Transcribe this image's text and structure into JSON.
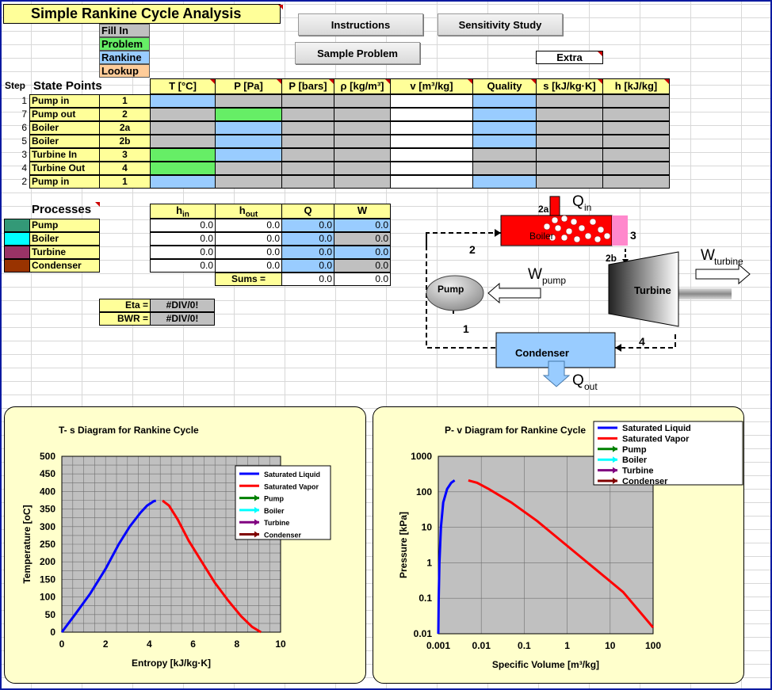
{
  "title": "Simple Rankine Cycle Analysis",
  "legend": [
    {
      "label": "Fill In",
      "color": "#c0c0c0"
    },
    {
      "label": "Problem",
      "color": "#66ee66"
    },
    {
      "label": "Rankine",
      "color": "#99ccff"
    },
    {
      "label": "Lookup",
      "color": "#ffcc99"
    }
  ],
  "buttons": {
    "instructions": "Instructions",
    "sensitivity": "Sensitivity Study",
    "sample": "Sample Problem",
    "extra": "Extra"
  },
  "states": {
    "step_label": "Step",
    "title": "State Points",
    "headers": [
      "T [°C]",
      "P [Pa]",
      "P [bars]",
      "ρ [kg/m³]",
      "v [m³/kg]",
      "Quality",
      "s [kJ/kg·K]",
      "h [kJ/kg]"
    ],
    "rows": [
      {
        "step": "1",
        "name": "Pump in",
        "pt": "1",
        "fills": [
          "b",
          "g",
          "g",
          "g",
          "w",
          "b",
          "g",
          "g"
        ]
      },
      {
        "step": "7",
        "name": "Pump out",
        "pt": "2",
        "fills": [
          "g",
          "gr",
          "g",
          "g",
          "w",
          "b",
          "g",
          "g"
        ]
      },
      {
        "step": "6",
        "name": "Boiler",
        "pt": "2a",
        "fills": [
          "g",
          "b",
          "g",
          "g",
          "w",
          "b",
          "g",
          "g"
        ]
      },
      {
        "step": "5",
        "name": "Boiler",
        "pt": "2b",
        "fills": [
          "g",
          "b",
          "g",
          "g",
          "w",
          "b",
          "g",
          "g"
        ]
      },
      {
        "step": "3",
        "name": "Turbine In",
        "pt": "3",
        "fills": [
          "gr",
          "b",
          "g",
          "g",
          "w",
          "g",
          "g",
          "g"
        ]
      },
      {
        "step": "4",
        "name": "Turbine Out",
        "pt": "4",
        "fills": [
          "gr",
          "g",
          "g",
          "g",
          "w",
          "g",
          "g",
          "g"
        ]
      },
      {
        "step": "2",
        "name": "Pump in",
        "pt": "1",
        "fills": [
          "b",
          "g",
          "g",
          "g",
          "w",
          "b",
          "g",
          "g"
        ]
      }
    ]
  },
  "processes": {
    "title": "Processes",
    "headers": [
      "hin",
      "hout",
      "Q",
      "W"
    ],
    "rows": [
      {
        "name": "Pump",
        "color": "#339977",
        "hin": "0.0",
        "hout": "0.0",
        "q": "0.0",
        "w": "0.0"
      },
      {
        "name": "Boiler",
        "color": "#00ffff",
        "hin": "0.0",
        "hout": "0.0",
        "q": "0.0",
        "w": "0.0"
      },
      {
        "name": "Turbine",
        "color": "#993366",
        "hin": "0.0",
        "hout": "0.0",
        "q": "0.0",
        "w": "0.0"
      },
      {
        "name": "Condenser",
        "color": "#993300",
        "hin": "0.0",
        "hout": "0.0",
        "q": "0.0",
        "w": "0.0"
      }
    ],
    "sums_label": "Sums =",
    "sum_q": "0.0",
    "sum_w": "0.0"
  },
  "results": {
    "eta_label": "Eta =",
    "eta": "#DIV/0!",
    "bwr_label": "BWR =",
    "bwr": "#DIV/0!"
  },
  "diagram": {
    "boiler": "Boiler",
    "turbine": "Turbine",
    "pump": "Pump",
    "condenser": "Condenser",
    "q_in": "Q",
    "q_in_sub": "in",
    "q_out": "Q",
    "q_out_sub": "out",
    "w_turbine": "W",
    "w_turbine_sub": "turbine",
    "w_pump": "W",
    "w_pump_sub": "pump",
    "labels": [
      "2a",
      "3",
      "2",
      "2b",
      "1",
      "4"
    ]
  },
  "chart_data": [
    {
      "type": "line",
      "title": "T- s Diagram for Rankine Cycle",
      "xlabel": "Entropy  [kJ/kg·K]",
      "ylabel": "Temperature [oC]",
      "xlim": [
        0,
        10
      ],
      "ylim": [
        0,
        500
      ],
      "xticks": [
        "0",
        "2",
        "4",
        "6",
        "8",
        "10"
      ],
      "yticks": [
        "0",
        "50",
        "100",
        "150",
        "200",
        "250",
        "300",
        "350",
        "400",
        "450",
        "500"
      ],
      "grid": true,
      "legend_position": "top-right",
      "legend": [
        {
          "name": "Saturated Liquid",
          "color": "#0000ff"
        },
        {
          "name": "Saturated Vapor",
          "color": "#ff0000"
        },
        {
          "name": "Pump",
          "color": "#008000"
        },
        {
          "name": "Boiler",
          "color": "#00ffff"
        },
        {
          "name": "Turbine",
          "color": "#800080"
        },
        {
          "name": "Condenser",
          "color": "#800000"
        }
      ],
      "series": [
        {
          "name": "Saturated Liquid",
          "color": "#0000ff",
          "x": [
            0,
            0.6,
            1.3,
            2.0,
            2.6,
            3.1,
            3.6,
            3.9,
            4.2,
            4.3
          ],
          "y": [
            0,
            50,
            110,
            180,
            250,
            300,
            340,
            360,
            372,
            374
          ]
        },
        {
          "name": "Saturated Vapor",
          "color": "#ff0000",
          "x": [
            4.6,
            4.9,
            5.3,
            5.8,
            6.4,
            7.0,
            7.6,
            8.2,
            8.7,
            9.1
          ],
          "y": [
            374,
            360,
            320,
            260,
            200,
            140,
            90,
            45,
            15,
            0
          ]
        }
      ]
    },
    {
      "type": "line",
      "title": "P- v Diagram for Rankine Cycle",
      "xlabel": "Specific Volume [m³/kg]",
      "ylabel": "Pressure  [kPa]",
      "xscale": "log",
      "yscale": "log",
      "xlim": [
        0.001,
        100
      ],
      "ylim": [
        0.01,
        1000
      ],
      "xticks": [
        "0.001",
        "0.01",
        "0.1",
        "1",
        "10",
        "100"
      ],
      "yticks": [
        "0.01",
        "0.1",
        "1",
        "10",
        "100",
        "1000"
      ],
      "grid": true,
      "legend_position": "top-right",
      "legend": [
        {
          "name": "Saturated Liquid",
          "color": "#0000ff"
        },
        {
          "name": "Saturated Vapor",
          "color": "#ff0000"
        },
        {
          "name": "Pump",
          "color": "#008000"
        },
        {
          "name": "Boiler",
          "color": "#00ffff"
        },
        {
          "name": "Turbine",
          "color": "#800080"
        },
        {
          "name": "Condenser",
          "color": "#800000"
        }
      ],
      "series": [
        {
          "name": "Saturated Liquid",
          "color": "#0000ff",
          "x": [
            0.001,
            0.00102,
            0.00106,
            0.00115,
            0.0013,
            0.0016,
            0.002,
            0.0024
          ],
          "y": [
            0.01,
            0.1,
            1,
            10,
            50,
            120,
            180,
            210
          ]
        },
        {
          "name": "Saturated Vapor",
          "color": "#ff0000",
          "x": [
            0.005,
            0.008,
            0.015,
            0.05,
            0.2,
            1,
            5,
            20,
            100
          ],
          "y": [
            210,
            180,
            120,
            50,
            15,
            3,
            0.6,
            0.15,
            0.015
          ]
        }
      ]
    }
  ]
}
